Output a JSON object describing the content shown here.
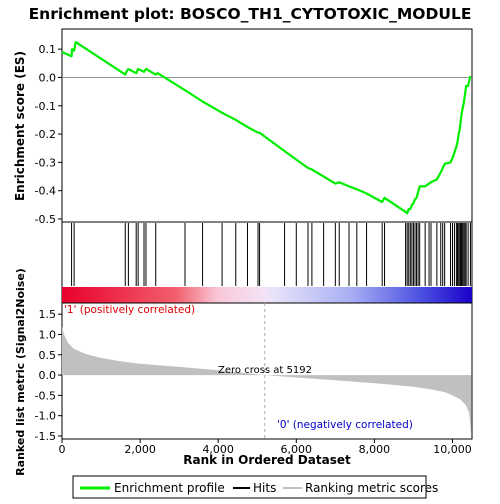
{
  "title": "Enrichment plot: BOSCO_TH1_CYTOTOXIC_MODULE",
  "colors": {
    "es_line": "#00ee00",
    "hits": "#000000",
    "metric_fill": "#c0c0c0",
    "pos_label": "#dd0000",
    "neg_label": "#0000cc",
    "frame": "#000000"
  },
  "chart_data": [
    {
      "type": "line",
      "name": "enrichment-profile",
      "ylabel": "Enrichment score (ES)",
      "xlim": [
        0,
        10500
      ],
      "ylim": [
        -0.5,
        0.15
      ],
      "yticks": [
        0.1,
        0.0,
        -0.1,
        -0.2,
        -0.3,
        -0.4,
        -0.5
      ],
      "ytick_labels": [
        "0.1",
        "0.0",
        "-0.1",
        "-0.2",
        "-0.3",
        "-0.4",
        "-0.5"
      ],
      "points": [
        [
          0,
          0.09
        ],
        [
          245,
          0.075
        ],
        [
          255,
          0.1
        ],
        [
          310,
          0.095
        ],
        [
          350,
          0.125
        ],
        [
          1620,
          0.01
        ],
        [
          1650,
          0.02
        ],
        [
          1700,
          0.03
        ],
        [
          1900,
          0.015
        ],
        [
          1950,
          0.03
        ],
        [
          2100,
          0.02
        ],
        [
          2150,
          0.03
        ],
        [
          2400,
          0.01
        ],
        [
          2450,
          0.015
        ],
        [
          3150,
          -0.045
        ],
        [
          3600,
          -0.085
        ],
        [
          4100,
          -0.125
        ],
        [
          4450,
          -0.15
        ],
        [
          4750,
          -0.175
        ],
        [
          5020,
          -0.195
        ],
        [
          5060,
          -0.195
        ],
        [
          5700,
          -0.26
        ],
        [
          6000,
          -0.29
        ],
        [
          6300,
          -0.32
        ],
        [
          6400,
          -0.325
        ],
        [
          6700,
          -0.35
        ],
        [
          7000,
          -0.375
        ],
        [
          7100,
          -0.37
        ],
        [
          7350,
          -0.385
        ],
        [
          7550,
          -0.395
        ],
        [
          7800,
          -0.41
        ],
        [
          8200,
          -0.44
        ],
        [
          8260,
          -0.425
        ],
        [
          8800,
          -0.475
        ],
        [
          8840,
          -0.48
        ],
        [
          8880,
          -0.465
        ],
        [
          8920,
          -0.465
        ],
        [
          8960,
          -0.45
        ],
        [
          9000,
          -0.445
        ],
        [
          9040,
          -0.43
        ],
        [
          9080,
          -0.425
        ],
        [
          9120,
          -0.405
        ],
        [
          9160,
          -0.385
        ],
        [
          9300,
          -0.385
        ],
        [
          9400,
          -0.375
        ],
        [
          9450,
          -0.37
        ],
        [
          9600,
          -0.36
        ],
        [
          9700,
          -0.335
        ],
        [
          9800,
          -0.305
        ],
        [
          9950,
          -0.3
        ],
        [
          10000,
          -0.285
        ],
        [
          10050,
          -0.265
        ],
        [
          10100,
          -0.245
        ],
        [
          10130,
          -0.225
        ],
        [
          10160,
          -0.2
        ],
        [
          10190,
          -0.18
        ],
        [
          10210,
          -0.155
        ],
        [
          10230,
          -0.13
        ],
        [
          10260,
          -0.11
        ],
        [
          10290,
          -0.09
        ],
        [
          10320,
          -0.06
        ],
        [
          10350,
          -0.03
        ],
        [
          10400,
          -0.03
        ],
        [
          10430,
          -0.01
        ],
        [
          10460,
          0.005
        ]
      ]
    },
    {
      "type": "scatter",
      "name": "hits",
      "positions": [
        245,
        310,
        1620,
        1700,
        1900,
        1950,
        2100,
        2150,
        2400,
        3150,
        3600,
        4100,
        4450,
        4750,
        5020,
        5060,
        5700,
        6000,
        6300,
        6400,
        6700,
        7000,
        7100,
        7350,
        7550,
        7800,
        8200,
        8260,
        8800,
        8840,
        8880,
        8920,
        8960,
        9000,
        9040,
        9080,
        9120,
        9160,
        9300,
        9400,
        9450,
        9600,
        9700,
        9750,
        9800,
        9950,
        10000,
        10050,
        10100,
        10130,
        10160,
        10190,
        10210,
        10230,
        10260,
        10290,
        10320,
        10350,
        10400,
        10460
      ]
    },
    {
      "type": "area",
      "name": "ranking-metric",
      "xlabel": "Rank in Ordered Dataset",
      "ylabel": "Ranked list metric (Signal2Noise)",
      "xlim": [
        0,
        10500
      ],
      "ylim": [
        -1.55,
        1.75
      ],
      "xticks": [
        0,
        2000,
        4000,
        6000,
        8000,
        10000
      ],
      "xtick_labels": [
        "0",
        "2,000",
        "4,000",
        "6,000",
        "8,000",
        "10,000"
      ],
      "yticks": [
        1.5,
        1.0,
        0.5,
        0.0,
        -0.5,
        -1.0,
        -1.5
      ],
      "ytick_labels": [
        "1.5",
        "1.0",
        "0.5",
        "0.0",
        "-0.5",
        "-1.0",
        "-1.5"
      ],
      "points": [
        [
          0,
          1.2
        ],
        [
          50,
          1.0
        ],
        [
          150,
          0.8
        ],
        [
          300,
          0.65
        ],
        [
          600,
          0.52
        ],
        [
          1000,
          0.42
        ],
        [
          1500,
          0.34
        ],
        [
          2000,
          0.28
        ],
        [
          3000,
          0.2
        ],
        [
          4000,
          0.12
        ],
        [
          5192,
          0.0
        ],
        [
          6000,
          -0.06
        ],
        [
          7000,
          -0.13
        ],
        [
          8000,
          -0.2
        ],
        [
          9000,
          -0.29
        ],
        [
          9500,
          -0.36
        ],
        [
          9800,
          -0.42
        ],
        [
          10000,
          -0.5
        ],
        [
          10200,
          -0.6
        ],
        [
          10350,
          -0.75
        ],
        [
          10430,
          -0.95
        ],
        [
          10470,
          -1.4
        ],
        [
          10480,
          -1.42
        ]
      ],
      "zero_cross": 5192,
      "annotation": "Zero cross at 5192",
      "pos_label": "'1' (positively correlated)",
      "neg_label": "'0' (negatively correlated)"
    }
  ],
  "legend": {
    "items": [
      {
        "label": "Enrichment profile",
        "color": "#00ee00"
      },
      {
        "label": "Hits",
        "color": "#000000"
      },
      {
        "label": "Ranking metric scores",
        "color": "#c0c0c0"
      }
    ]
  }
}
